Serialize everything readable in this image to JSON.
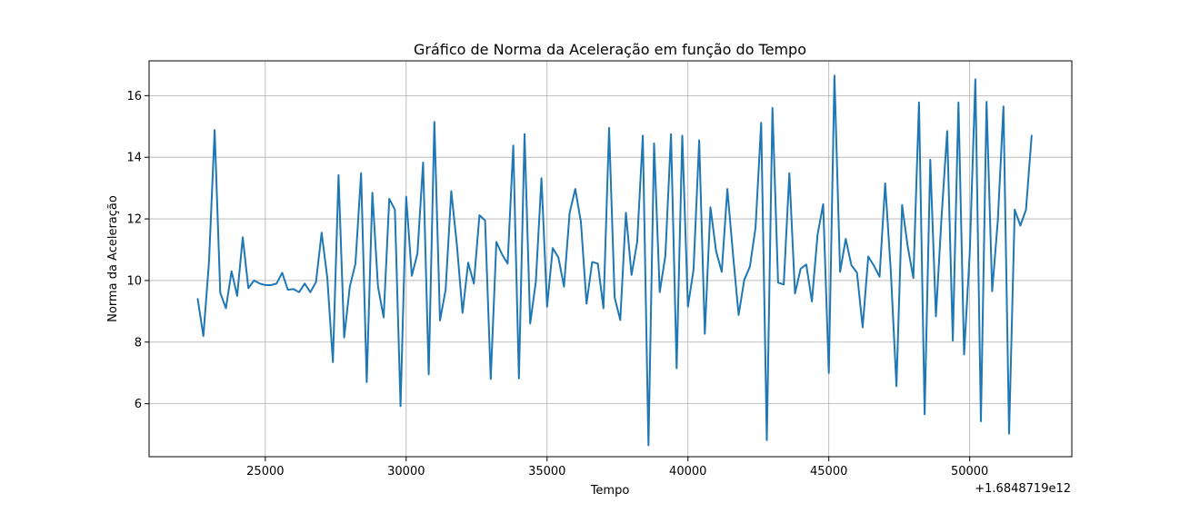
{
  "chart_data": {
    "type": "line",
    "title": "Gráfico de Norma da Aceleração em função do Tempo",
    "xlabel": "Tempo",
    "ylabel": "Norma da Aceleração",
    "x_offset_label": "+1.6848719e12",
    "xlim": [
      20875,
      53625
    ],
    "ylim": [
      4.28,
      17.13
    ],
    "xticks": [
      25000,
      30000,
      35000,
      40000,
      45000,
      50000
    ],
    "xtick_labels": [
      "25000",
      "30000",
      "35000",
      "40000",
      "45000",
      "50000"
    ],
    "yticks": [
      6,
      8,
      10,
      12,
      14,
      16
    ],
    "ytick_labels": [
      "6",
      "8",
      "10",
      "12",
      "14",
      "16"
    ],
    "grid": true,
    "line_color": "#1f77b4",
    "series": [
      {
        "x": [
          22600,
          22800,
          23000,
          23200,
          23400,
          23600,
          23800,
          24000,
          24200,
          24400,
          24600,
          24800,
          25000,
          25200,
          25400,
          25600,
          25800,
          26000,
          26200,
          26400,
          26600,
          26800,
          27000,
          27200,
          27400,
          27600,
          27800,
          28000,
          28200,
          28400,
          28600,
          28800,
          29000,
          29200,
          29400,
          29600,
          29800,
          30000,
          30200,
          30400,
          30600,
          30800,
          31000,
          31200,
          31400,
          31600,
          31800,
          32000,
          32200,
          32400,
          32600,
          32800,
          33000,
          33200,
          33400,
          33600,
          33800,
          34000,
          34200,
          34400,
          34600,
          34800,
          35000,
          35200,
          35400,
          35600,
          35800,
          36000,
          36200,
          36400,
          36600,
          36800,
          37000,
          37200,
          37400,
          37600,
          37800,
          38000,
          38200,
          38400,
          38600,
          38800,
          39000,
          39200,
          39400,
          39600,
          39800,
          40000,
          40200,
          40400,
          40600,
          40800,
          41000,
          41200,
          41400,
          41600,
          41800,
          42000,
          42200,
          42400,
          42600,
          42800,
          43000,
          43200,
          43400,
          43600,
          43800,
          44000,
          44200,
          44400,
          44600,
          44800,
          45000,
          45200,
          45400,
          45600,
          45800,
          46000,
          46200,
          46400,
          46600,
          46800,
          47000,
          47200,
          47400,
          47600,
          47800,
          48000,
          48200,
          48400,
          48600,
          48800,
          49000,
          49200,
          49400,
          49600,
          49800,
          50000,
          50200,
          50400,
          50600,
          50800,
          51000,
          51200,
          51400,
          51600,
          51800,
          52000,
          52200
        ],
        "y": [
          9.4,
          8.2,
          10.6,
          14.88,
          9.6,
          9.1,
          10.3,
          9.5,
          11.4,
          9.75,
          10.0,
          9.9,
          9.85,
          9.85,
          9.9,
          10.25,
          9.7,
          9.72,
          9.62,
          9.9,
          9.62,
          9.95,
          11.55,
          10.1,
          7.35,
          13.42,
          8.15,
          9.8,
          10.55,
          13.48,
          6.7,
          12.85,
          9.8,
          8.8,
          12.65,
          12.3,
          5.92,
          12.72,
          10.15,
          10.88,
          13.83,
          6.95,
          15.15,
          8.7,
          9.7,
          12.9,
          11.15,
          8.95,
          10.58,
          9.9,
          12.12,
          11.95,
          6.8,
          11.25,
          10.85,
          10.55,
          14.38,
          6.82,
          14.75,
          8.6,
          9.95,
          13.32,
          9.15,
          11.05,
          10.75,
          9.8,
          12.2,
          12.97,
          11.9,
          9.25,
          10.6,
          10.55,
          9.1,
          14.95,
          9.45,
          8.72,
          12.2,
          10.18,
          11.25,
          14.7,
          4.65,
          14.45,
          9.62,
          10.8,
          14.75,
          7.15,
          14.7,
          9.15,
          10.35,
          14.55,
          8.27,
          12.38,
          10.95,
          10.28,
          12.97,
          10.85,
          8.88,
          10.02,
          10.45,
          11.72,
          15.12,
          4.82,
          15.6,
          9.93,
          9.87,
          13.48,
          9.58,
          10.38,
          10.52,
          9.32,
          11.48,
          12.48,
          7.0,
          16.65,
          10.28,
          11.35,
          10.5,
          10.25,
          8.48,
          10.78,
          10.48,
          10.12,
          13.15,
          10.3,
          6.57,
          12.45,
          11.1,
          10.08,
          15.78,
          5.66,
          13.92,
          8.83,
          12.05,
          14.85,
          8.05,
          15.78,
          7.6,
          10.88,
          16.53,
          5.43,
          15.8,
          9.65,
          11.95,
          15.65,
          5.03,
          12.3,
          11.78,
          12.3,
          14.7
        ]
      }
    ]
  }
}
